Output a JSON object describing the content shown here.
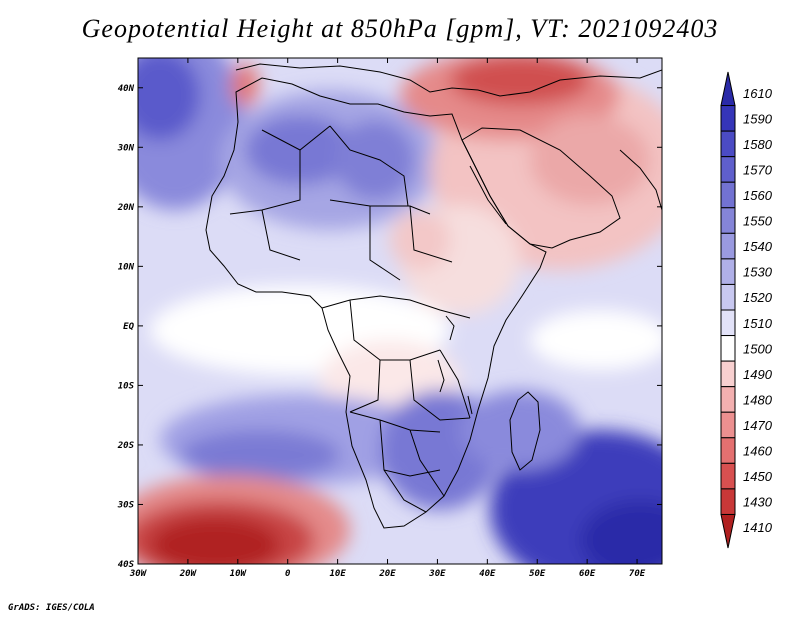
{
  "title": "Geopotential Height at 850hPa [gpm], VT: 2021092403",
  "credit": "GrADS: IGES/COLA",
  "map": {
    "lon_ticks": [
      "30W",
      "20W",
      "10W",
      "0",
      "10E",
      "20E",
      "30E",
      "40E",
      "50E",
      "60E",
      "70E"
    ],
    "lat_ticks": [
      "40N",
      "30N",
      "20N",
      "10N",
      "EQ",
      "10S",
      "20S",
      "30S",
      "40S"
    ],
    "lon_range": [
      -30,
      75
    ],
    "lat_range": [
      -40,
      45
    ]
  },
  "colorbar": {
    "levels": [
      "1610",
      "1590",
      "1580",
      "1570",
      "1560",
      "1550",
      "1540",
      "1530",
      "1520",
      "1510",
      "1500",
      "1490",
      "1480",
      "1470",
      "1460",
      "1450",
      "1430",
      "1410"
    ],
    "colors": [
      "#2a2aa8",
      "#3535b8",
      "#4b4bc4",
      "#5f5fcc",
      "#7272d2",
      "#8585d8",
      "#9a9ae0",
      "#b0b0e8",
      "#c8c8f0",
      "#e2e2f8",
      "#ffffff",
      "#f8d0d0",
      "#f3b0b0",
      "#ec9090",
      "#e47070",
      "#d85050",
      "#c83838",
      "#b02020"
    ]
  }
}
